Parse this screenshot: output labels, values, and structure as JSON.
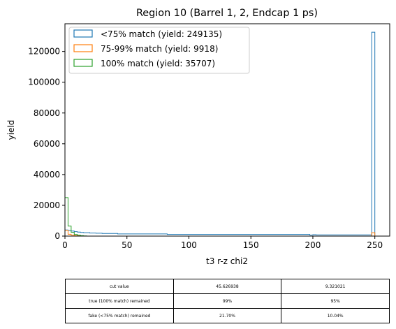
{
  "chart_data": {
    "type": "histogram",
    "title": "Region 10 (Barrel 1, 2, Endcap 1 ps)",
    "xlabel": "t3 r-z chi2",
    "ylabel": "yield",
    "xlim": [
      0,
      262
    ],
    "ylim": [
      0,
      138000
    ],
    "xticks": [
      "0",
      "50",
      "100",
      "150",
      "200",
      "250"
    ],
    "yticks": [
      "0",
      "20000",
      "40000",
      "60000",
      "80000",
      "100000",
      "120000"
    ],
    "legend_position": "upper-left",
    "series": [
      {
        "name": "<75% match (yield: 249135)",
        "color": "#1f77b4",
        "steps": [
          {
            "x0": 0,
            "x1": 2.5,
            "y": 4000
          },
          {
            "x0": 2.5,
            "x1": 5,
            "y": 3700
          },
          {
            "x0": 5,
            "x1": 7.5,
            "y": 3300
          },
          {
            "x0": 7.5,
            "x1": 10,
            "y": 2900
          },
          {
            "x0": 10,
            "x1": 12.5,
            "y": 2600
          },
          {
            "x0": 12.5,
            "x1": 15,
            "y": 2400
          },
          {
            "x0": 15,
            "x1": 20,
            "y": 2200
          },
          {
            "x0": 20,
            "x1": 25,
            "y": 2000
          },
          {
            "x0": 25,
            "x1": 30,
            "y": 1900
          },
          {
            "x0": 30,
            "x1": 42.5,
            "y": 1700
          },
          {
            "x0": 42.5,
            "x1": 82.5,
            "y": 1400
          },
          {
            "x0": 82.5,
            "x1": 197.5,
            "y": 1100
          },
          {
            "x0": 197.5,
            "x1": 200,
            "y": 700
          },
          {
            "x0": 200,
            "x1": 202.5,
            "y": 900
          },
          {
            "x0": 202.5,
            "x1": 247.5,
            "y": 800
          },
          {
            "x0": 247.5,
            "x1": 250,
            "y": 132500
          },
          {
            "x0": 250,
            "x1": 252.5,
            "y": 0
          }
        ]
      },
      {
        "name": "75-99% match (yield: 9918)",
        "color": "#ff7f0e",
        "steps": [
          {
            "x0": 0,
            "x1": 2.5,
            "y": 3800
          },
          {
            "x0": 2.5,
            "x1": 5,
            "y": 1200
          },
          {
            "x0": 5,
            "x1": 7.5,
            "y": 600
          },
          {
            "x0": 7.5,
            "x1": 10,
            "y": 300
          },
          {
            "x0": 10,
            "x1": 12.5,
            "y": 150
          },
          {
            "x0": 12.5,
            "x1": 15,
            "y": 80
          },
          {
            "x0": 15,
            "x1": 247.5,
            "y": 0
          },
          {
            "x0": 247.5,
            "x1": 250,
            "y": 2200
          },
          {
            "x0": 250,
            "x1": 252.5,
            "y": 0
          }
        ]
      },
      {
        "name": "100% match (yield: 35707)",
        "color": "#2ca02c",
        "steps": [
          {
            "x0": 0,
            "x1": 2.5,
            "y": 25000
          },
          {
            "x0": 2.5,
            "x1": 5,
            "y": 6500
          },
          {
            "x0": 5,
            "x1": 7.5,
            "y": 2500
          },
          {
            "x0": 7.5,
            "x1": 10,
            "y": 1100
          },
          {
            "x0": 10,
            "x1": 12.5,
            "y": 600
          },
          {
            "x0": 12.5,
            "x1": 15,
            "y": 300
          },
          {
            "x0": 15,
            "x1": 17.5,
            "y": 100
          },
          {
            "x0": 17.5,
            "x1": 252.5,
            "y": 0
          }
        ]
      }
    ]
  },
  "table": {
    "rows": [
      [
        "cut value",
        "45.626938",
        "9.321021"
      ],
      [
        "true (100% match) remained",
        "99%",
        "95%"
      ],
      [
        "fake (<75% match) remained",
        "21.70%",
        "10.04%"
      ]
    ]
  }
}
